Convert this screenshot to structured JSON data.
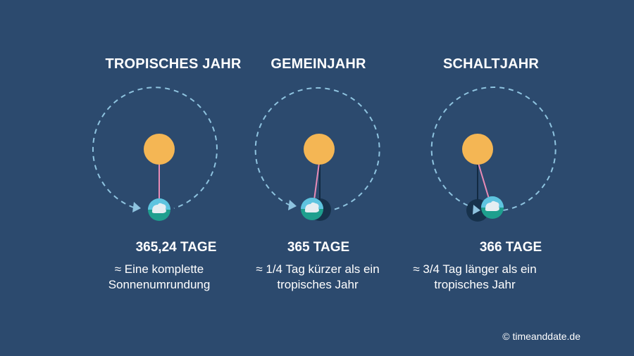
{
  "colors": {
    "background": "#2c4a6e",
    "sun": "#f4b654",
    "orbit": "#8ec3df",
    "earth_ocean": "#1e9f8e",
    "earth_top": "#5fc4e0",
    "earth_cloud": "#e6eef2",
    "shadow_earth": "#17324c",
    "pink_line": "#e98bb6",
    "dark_line": "#122a42"
  },
  "panels": [
    {
      "title": "TROPISCHES JAHR",
      "days": "365,24 TAGE",
      "desc_lines": [
        "≈ Eine komplette",
        "Sonnenumrundung"
      ]
    },
    {
      "title": "GEMEINJAHR",
      "days": "365 TAGE",
      "desc_lines": [
        "≈ 1/4 Tag kürzer als ein",
        "tropisches Jahr"
      ]
    },
    {
      "title": "SCHALTJAHR",
      "days": "366 TAGE",
      "desc_lines": [
        "≈ 3/4 Tag länger als ein",
        "tropisches Jahr"
      ]
    }
  ],
  "copyright": "© timeanddate.de"
}
